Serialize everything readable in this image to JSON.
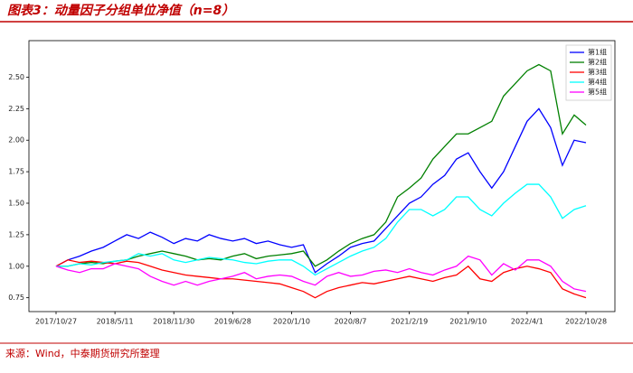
{
  "chart_data": {
    "type": "line",
    "title": "图表3：动量因子分组单位净值（n=8）",
    "source": "来源：Wind，中泰期货研究所整理",
    "categories": [
      "2017/10/27",
      null,
      null,
      null,
      null,
      "2018/5/11",
      null,
      null,
      null,
      null,
      "2018/11/30",
      null,
      null,
      null,
      null,
      "2019/6/28",
      null,
      null,
      null,
      null,
      "2020/1/10",
      null,
      null,
      null,
      null,
      "2020/8/7",
      null,
      null,
      null,
      null,
      "2021/2/19",
      null,
      null,
      null,
      null,
      "2021/9/10",
      null,
      null,
      null,
      null,
      "2022/4/1",
      null,
      null,
      null,
      null,
      "2022/10/28"
    ],
    "series": [
      {
        "name": "第1组",
        "color": "#0000ff",
        "values": [
          1.0,
          1.05,
          1.08,
          1.12,
          1.15,
          1.2,
          1.25,
          1.22,
          1.27,
          1.23,
          1.18,
          1.22,
          1.2,
          1.25,
          1.22,
          1.2,
          1.22,
          1.18,
          1.2,
          1.17,
          1.15,
          1.17,
          0.95,
          1.02,
          1.08,
          1.15,
          1.18,
          1.2,
          1.3,
          1.4,
          1.5,
          1.55,
          1.65,
          1.72,
          1.85,
          1.9,
          1.75,
          1.62,
          1.75,
          1.95,
          2.15,
          2.25,
          2.1,
          1.8,
          2.0,
          1.98
        ]
      },
      {
        "name": "第2组",
        "color": "#008000",
        "values": [
          1.0,
          1.0,
          1.02,
          1.03,
          1.02,
          1.04,
          1.05,
          1.08,
          1.1,
          1.12,
          1.1,
          1.08,
          1.05,
          1.06,
          1.05,
          1.08,
          1.1,
          1.06,
          1.08,
          1.09,
          1.1,
          1.12,
          1.0,
          1.05,
          1.12,
          1.18,
          1.22,
          1.25,
          1.35,
          1.55,
          1.62,
          1.7,
          1.85,
          1.95,
          2.05,
          2.05,
          2.1,
          2.15,
          2.35,
          2.45,
          2.55,
          2.6,
          2.55,
          2.05,
          2.2,
          2.12
        ]
      },
      {
        "name": "第3组",
        "color": "#ff0000",
        "values": [
          1.0,
          1.05,
          1.03,
          1.04,
          1.03,
          1.02,
          1.04,
          1.03,
          1.0,
          0.97,
          0.95,
          0.93,
          0.92,
          0.91,
          0.9,
          0.9,
          0.89,
          0.88,
          0.87,
          0.86,
          0.83,
          0.8,
          0.75,
          0.8,
          0.83,
          0.85,
          0.87,
          0.86,
          0.88,
          0.9,
          0.92,
          0.9,
          0.88,
          0.91,
          0.93,
          1.0,
          0.9,
          0.88,
          0.95,
          0.98,
          1.0,
          0.98,
          0.95,
          0.82,
          0.78,
          0.75
        ]
      },
      {
        "name": "第4组",
        "color": "#00ffff",
        "values": [
          1.0,
          1.0,
          1.02,
          1.01,
          1.03,
          1.04,
          1.05,
          1.1,
          1.08,
          1.1,
          1.05,
          1.03,
          1.05,
          1.07,
          1.06,
          1.05,
          1.03,
          1.02,
          1.04,
          1.05,
          1.05,
          1.0,
          0.93,
          0.98,
          1.03,
          1.08,
          1.12,
          1.15,
          1.22,
          1.35,
          1.45,
          1.45,
          1.4,
          1.45,
          1.55,
          1.55,
          1.45,
          1.4,
          1.5,
          1.58,
          1.65,
          1.65,
          1.55,
          1.38,
          1.45,
          1.48
        ]
      },
      {
        "name": "第5组",
        "color": "#ff00ff",
        "values": [
          1.0,
          0.97,
          0.95,
          0.98,
          0.98,
          1.02,
          1.0,
          0.98,
          0.92,
          0.88,
          0.85,
          0.88,
          0.85,
          0.88,
          0.9,
          0.92,
          0.95,
          0.9,
          0.92,
          0.93,
          0.92,
          0.88,
          0.85,
          0.92,
          0.95,
          0.92,
          0.93,
          0.96,
          0.97,
          0.95,
          0.98,
          0.95,
          0.93,
          0.97,
          1.0,
          1.08,
          1.05,
          0.93,
          1.02,
          0.97,
          1.05,
          1.05,
          1.0,
          0.88,
          0.82,
          0.8
        ]
      }
    ],
    "ylim": [
      0.64,
      2.79
    ],
    "yticks": [
      0.75,
      {
        "value": 1.0,
        "label": "1.00"
      },
      1.25,
      {
        "value": 1.5,
        "label": "1.50"
      },
      1.75,
      {
        "value": 2.0,
        "label": "2.00"
      },
      2.25,
      {
        "value": 2.5,
        "label": "2.50"
      }
    ],
    "legend": "upper right"
  }
}
